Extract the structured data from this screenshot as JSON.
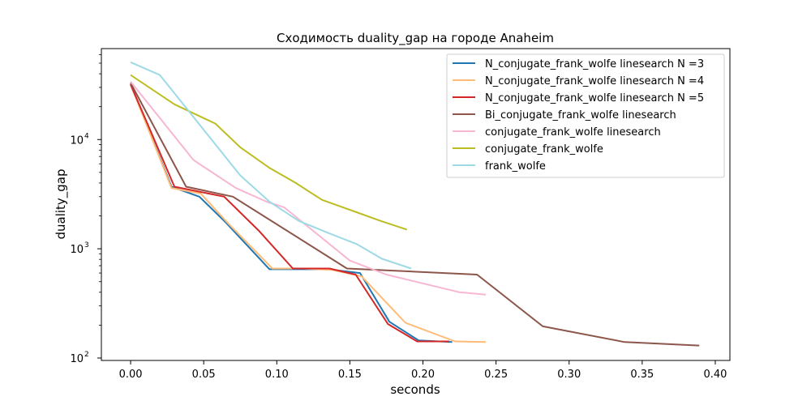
{
  "chart_data": {
    "type": "line",
    "title": "Сходимость duality_gap на городе Anaheim",
    "xlabel": "seconds",
    "ylabel": "duality_gap",
    "xlim": [
      -0.02,
      0.41
    ],
    "ylim": [
      95,
      68000
    ],
    "yscale": "log",
    "xticks": [
      0.0,
      0.05,
      0.1,
      0.15,
      0.2,
      0.25,
      0.3,
      0.35,
      0.4
    ],
    "xtick_labels": [
      "0.00",
      "0.05",
      "0.10",
      "0.15",
      "0.20",
      "0.25",
      "0.30",
      "0.35",
      "0.40"
    ],
    "ytick_labels": [
      {
        "base": "10",
        "exp": "2"
      },
      {
        "base": "10",
        "exp": "3"
      },
      {
        "base": "10",
        "exp": "4"
      }
    ],
    "yticks": [
      100,
      1000,
      10000
    ],
    "grid": false,
    "legend_position": "top-right",
    "series": [
      {
        "name": "N_conjugate_frank_wolfe linesearch N =3",
        "color": "#1f77b4",
        "x": [
          0.0,
          0.028,
          0.047,
          0.065,
          0.095,
          0.115,
          0.135,
          0.157,
          0.177,
          0.197,
          0.22
        ],
        "y": [
          32000,
          3700,
          3000,
          1750,
          650,
          650,
          650,
          600,
          215,
          145,
          140
        ]
      },
      {
        "name": "N_conjugate_frank_wolfe linesearch N =4",
        "color": "#ffbb78",
        "x": [
          0.0,
          0.028,
          0.048,
          0.066,
          0.097,
          0.118,
          0.138,
          0.158,
          0.188,
          0.222,
          0.243
        ],
        "y": [
          32000,
          3600,
          3200,
          1750,
          660,
          660,
          640,
          560,
          210,
          142,
          140
        ]
      },
      {
        "name": "N_conjugate_frank_wolfe linesearch N =5",
        "color": "#d62728",
        "x": [
          0.0,
          0.03,
          0.064,
          0.088,
          0.111,
          0.136,
          0.154,
          0.176,
          0.196,
          0.218
        ],
        "y": [
          32000,
          3700,
          3000,
          1450,
          660,
          660,
          580,
          205,
          142,
          142
        ]
      },
      {
        "name": "Bi_conjugate_frank_wolfe linesearch",
        "color": "#8c564b",
        "x": [
          0.0,
          0.038,
          0.07,
          0.148,
          0.237,
          0.282,
          0.338,
          0.389
        ],
        "y": [
          33000,
          3700,
          3000,
          660,
          580,
          195,
          140,
          130
        ]
      },
      {
        "name": "conjugate_frank_wolfe linesearch",
        "color": "#f7b6d2",
        "x": [
          0.0,
          0.043,
          0.072,
          0.093,
          0.105,
          0.15,
          0.175,
          0.225,
          0.243
        ],
        "y": [
          34000,
          6500,
          3600,
          2700,
          2400,
          780,
          580,
          400,
          380
        ]
      },
      {
        "name": "conjugate_frank_wolfe",
        "color": "#bcbd22",
        "x": [
          0.0,
          0.03,
          0.058,
          0.075,
          0.095,
          0.113,
          0.131,
          0.153,
          0.171,
          0.189
        ],
        "y": [
          39000,
          21000,
          14000,
          8500,
          5500,
          4000,
          2800,
          2200,
          1800,
          1500
        ]
      },
      {
        "name": "frank_wolfe",
        "color": "#9edae5",
        "x": [
          0.0,
          0.02,
          0.075,
          0.095,
          0.115,
          0.135,
          0.155,
          0.172,
          0.192
        ],
        "y": [
          51000,
          39000,
          4700,
          2700,
          1800,
          1400,
          1100,
          810,
          660
        ]
      }
    ]
  }
}
